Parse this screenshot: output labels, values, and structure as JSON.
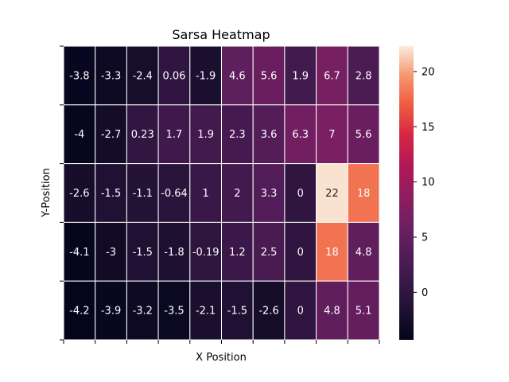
{
  "chart_data": {
    "type": "heatmap",
    "title": "Sarsa Heatmap",
    "xlabel": "X Position",
    "ylabel": "Y-Position",
    "rows": [
      [
        -3.8,
        -3.3,
        -2.4,
        0.06,
        -1.9,
        4.6,
        5.6,
        1.9,
        6.7,
        2.8
      ],
      [
        -4,
        -2.7,
        0.23,
        1.7,
        1.9,
        2.3,
        3.6,
        6.3,
        7,
        5.6
      ],
      [
        -2.6,
        -1.5,
        -1.1,
        -0.64,
        1,
        2,
        3.3,
        0,
        22,
        18
      ],
      [
        -4.1,
        -3,
        -1.5,
        -1.8,
        -0.19,
        1.2,
        2.5,
        0,
        18,
        4.8
      ],
      [
        -4.2,
        -3.9,
        -3.2,
        -3.5,
        -2.1,
        -1.5,
        -2.6,
        0,
        4.8,
        5.1
      ]
    ],
    "cell_labels": [
      [
        "-3.8",
        "-3.3",
        "-2.4",
        "0.06",
        "-1.9",
        "4.6",
        "5.6",
        "1.9",
        "6.7",
        "2.8"
      ],
      [
        "-4",
        "-2.7",
        "0.23",
        "1.7",
        "1.9",
        "2.3",
        "3.6",
        "6.3",
        "7",
        "5.6"
      ],
      [
        "-2.6",
        "-1.5",
        "-1.1",
        "-0.64",
        "1",
        "2",
        "3.3",
        "0",
        "22",
        "18"
      ],
      [
        "-4.1",
        "-3",
        "-1.5",
        "-1.8",
        "-0.19",
        "1.2",
        "2.5",
        "0",
        "18",
        "4.8"
      ],
      [
        "-4.2",
        "-3.9",
        "-3.2",
        "-3.5",
        "-2.1",
        "-1.5",
        "-2.6",
        "0",
        "4.8",
        "5.1"
      ]
    ],
    "color_range": [
      -4.3,
      22.3
    ],
    "colorbar_ticks": [
      0,
      5,
      10,
      15,
      20
    ],
    "colormap": "rocket",
    "grid_line_color": "#ffffff"
  }
}
